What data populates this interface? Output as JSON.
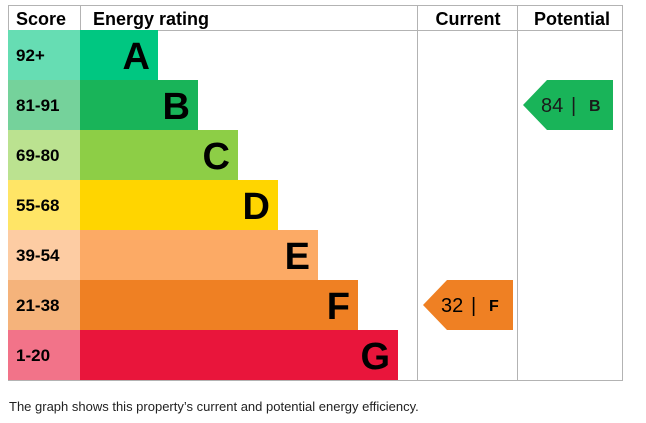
{
  "chart_data": {
    "type": "bar",
    "headers": {
      "score": "Score",
      "rating": "Energy rating",
      "current": "Current",
      "potential": "Potential"
    },
    "bands": [
      {
        "letter": "A",
        "range": "92+",
        "color": "#00c781",
        "score_color": "#66ddb3"
      },
      {
        "letter": "B",
        "range": "81-91",
        "color": "#19b459",
        "score_color": "#75d29b"
      },
      {
        "letter": "C",
        "range": "69-80",
        "color": "#8dce46",
        "score_color": "#bbe290"
      },
      {
        "letter": "D",
        "range": "55-68",
        "color": "#ffd500",
        "score_color": "#ffe566"
      },
      {
        "letter": "E",
        "range": "39-54",
        "color": "#fcaa65",
        "score_color": "#fdcca3"
      },
      {
        "letter": "F",
        "range": "21-38",
        "color": "#ef8023",
        "score_color": "#f5b37b"
      },
      {
        "letter": "G",
        "range": "1-20",
        "color": "#e9153b",
        "score_color": "#f27389"
      }
    ],
    "current": {
      "value": "32",
      "separator": "|",
      "letter": "F",
      "color": "#ef8023"
    },
    "potential": {
      "value": "84",
      "separator": "|",
      "letter": "B",
      "color": "#19b459"
    }
  },
  "caption": "The graph shows this property’s current and potential energy efficiency."
}
